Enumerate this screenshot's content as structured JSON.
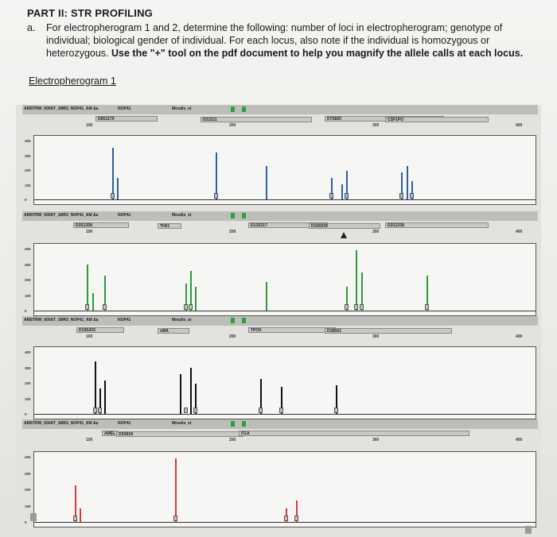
{
  "page": {
    "heading": "PART II: STR PROFILING",
    "item_marker": "a.",
    "instructions": "For electropherogram 1 and 2, determine the following: number of loci in electropherogram; genotype of individual; biological gender of individual. For each locus, also note if the individual is homozygous or heterozygous.",
    "instructions_bold": "Use the \"+\" tool on the pdf document to help you magnify the allele calls at each locus.",
    "electropherogram_heading": "Electropherogram 1"
  },
  "colors": {
    "blue_dye": "#2b5fa8",
    "green_dye": "#2f9a3a",
    "black_dye": "#111111",
    "red_dye": "#d63a3a",
    "allele_box_blue": "#9fb8d8",
    "allele_box_green": "#a9d6a4",
    "allele_box_black": "#bdbdbd",
    "allele_box_red": "#f0b0a8"
  },
  "panels": [
    {
      "dye": "blue",
      "toolbar_text": "AMSTRW_000AT_1MR3_NOP41_AM &a",
      "toolbar_right": "NOP41",
      "toolbar_mid": "Mnsdis_st",
      "loci": [
        "D8S1179",
        "D21S11",
        "D7S820",
        "CSF1PO"
      ],
      "ruler": [
        "100",
        "200",
        "300",
        "400"
      ],
      "yticks": [
        "400",
        "300",
        "200",
        "100",
        "0"
      ],
      "height": 1
    },
    {
      "dye": "green",
      "toolbar_text": "AMSTRW_000AT_1MR3_NOP41_AM &a",
      "toolbar_right": "NOP41",
      "toolbar_mid": "Mnsdis_st",
      "loci": [
        "D3S1358",
        "TH01",
        "D13S317",
        "D16S539",
        "D2S1338"
      ],
      "ruler": [
        "100",
        "200",
        "300",
        "400"
      ],
      "yticks": [
        "400",
        "300",
        "200",
        "100",
        "0"
      ],
      "height": 1
    },
    {
      "dye": "black",
      "toolbar_text": "AMSTRW_000AT_1MR3_NOP41_AM &a",
      "toolbar_right": "NOP41",
      "toolbar_mid": "Mnsdis_st",
      "loci": [
        "D19S433",
        "vWA",
        "TPOX",
        "D18S51"
      ],
      "ruler": [
        "100",
        "200",
        "300",
        "400"
      ],
      "yticks": [
        "400",
        "300",
        "200",
        "100",
        "0"
      ],
      "height": 1
    },
    {
      "dye": "red",
      "toolbar_text": "AMSTRW_000AT_1MR3_NOP41_AM &a",
      "toolbar_right": "NOP41",
      "toolbar_mid": "Mnsdis_st",
      "loci": [
        "AMEL",
        "D5S818",
        "FGA"
      ],
      "ruler": [
        "100",
        "200",
        "300",
        "400"
      ],
      "yticks": [
        "400",
        "300",
        "200",
        "100",
        "0"
      ],
      "height": 1
    }
  ]
}
